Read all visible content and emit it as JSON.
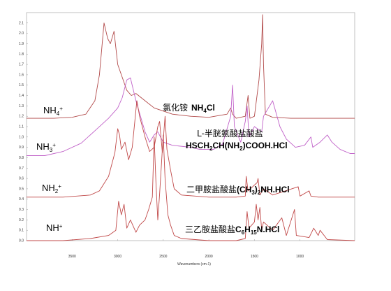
{
  "chart_data": {
    "type": "line",
    "xlabel": "Wavenumbers (cm-1)",
    "xlim": [
      4000,
      400
    ],
    "ylim": [
      0,
      2.2
    ],
    "x_ticks": [
      "3500",
      "3000",
      "2500",
      "2000",
      "1500",
      "1000"
    ],
    "y_ticks": [
      "2.1",
      "2.0",
      "1.9",
      "1.8",
      "1.7",
      "1.6",
      "1.5",
      "1.4",
      "1.3",
      "1.2",
      "1.1",
      "1.0",
      "0.9",
      "0.8",
      "0.7",
      "0.6",
      "0.5",
      "0.4",
      "0.3",
      "0.2",
      "0.1",
      "0.0"
    ],
    "groups": [
      {
        "base": "NH",
        "sub": "4",
        "sup": "+"
      },
      {
        "base": "NH",
        "sub": "3",
        "sup": "+"
      },
      {
        "base": "NH",
        "sub": "2",
        "sup": "+"
      },
      {
        "base": "NH",
        "sup": "+"
      }
    ],
    "compounds": [
      {
        "cn": "氯化铵",
        "f1": "NH",
        "f2": "4",
        "f3": "Cl"
      },
      {
        "cn": "L-半胱氨酸盐酸盐",
        "f1": "HSCH",
        "f2": "2",
        "f3": "CH(NH",
        "f4": "2",
        "f5": ")COOH.HCl"
      },
      {
        "cn": "二甲胺盐酸盐",
        "f1": "(CH",
        "f2": "3",
        "f3": ")",
        "f4": "2",
        "f5": "NH.HCl"
      },
      {
        "cn": "三乙胺盐酸盐",
        "f1": "C",
        "f2": "6",
        "f3": "H",
        "f4": "15",
        "f5": "N.HCl"
      }
    ],
    "series": [
      {
        "color": "#b24a4a",
        "points": [
          [
            4000,
            1.18
          ],
          [
            3700,
            1.18
          ],
          [
            3500,
            1.19
          ],
          [
            3350,
            1.22
          ],
          [
            3250,
            1.35
          ],
          [
            3200,
            1.6
          ],
          [
            3150,
            2.1
          ],
          [
            3110,
            1.95
          ],
          [
            3080,
            1.9
          ],
          [
            3040,
            2.02
          ],
          [
            3000,
            1.7
          ],
          [
            2900,
            1.45
          ],
          [
            2850,
            1.4
          ],
          [
            2800,
            1.42
          ],
          [
            2700,
            1.35
          ],
          [
            2600,
            1.28
          ],
          [
            2400,
            1.22
          ],
          [
            2200,
            1.2
          ],
          [
            2000,
            1.19
          ],
          [
            1800,
            1.22
          ],
          [
            1760,
            1.28
          ],
          [
            1740,
            1.22
          ],
          [
            1700,
            1.18
          ],
          [
            1600,
            1.2
          ],
          [
            1570,
            1.4
          ],
          [
            1550,
            1.18
          ],
          [
            1500,
            1.2
          ],
          [
            1450,
            1.55
          ],
          [
            1420,
            1.9
          ],
          [
            1410,
            2.18
          ],
          [
            1400,
            1.7
          ],
          [
            1380,
            1.22
          ],
          [
            1300,
            1.19
          ],
          [
            1100,
            1.18
          ],
          [
            800,
            1.18
          ],
          [
            400,
            1.18
          ]
        ]
      },
      {
        "color": "#c060c8",
        "points": [
          [
            4000,
            0.82
          ],
          [
            3800,
            0.82
          ],
          [
            3600,
            0.86
          ],
          [
            3400,
            0.94
          ],
          [
            3250,
            1.06
          ],
          [
            3100,
            1.18
          ],
          [
            3000,
            1.28
          ],
          [
            2950,
            1.38
          ],
          [
            2900,
            1.55
          ],
          [
            2860,
            1.57
          ],
          [
            2800,
            1.35
          ],
          [
            2700,
            1.05
          ],
          [
            2650,
            0.95
          ],
          [
            2600,
            1.02
          ],
          [
            2560,
            1.05
          ],
          [
            2500,
            0.95
          ],
          [
            2400,
            0.92
          ],
          [
            2200,
            0.9
          ],
          [
            2100,
            0.88
          ],
          [
            1950,
            0.88
          ],
          [
            1850,
            0.93
          ],
          [
            1760,
            1.2
          ],
          [
            1740,
            1.5
          ],
          [
            1720,
            1.1
          ],
          [
            1650,
            0.95
          ],
          [
            1600,
            1.15
          ],
          [
            1580,
            1.3
          ],
          [
            1560,
            1.0
          ],
          [
            1500,
            1.1
          ],
          [
            1420,
            1.05
          ],
          [
            1400,
            1.2
          ],
          [
            1300,
            1.35
          ],
          [
            1220,
            1.1
          ],
          [
            1150,
            0.98
          ],
          [
            1050,
            0.9
          ],
          [
            950,
            0.92
          ],
          [
            880,
            1.0
          ],
          [
            860,
            0.9
          ],
          [
            780,
            0.95
          ],
          [
            700,
            1.02
          ],
          [
            650,
            0.95
          ],
          [
            560,
            0.88
          ],
          [
            450,
            0.84
          ],
          [
            400,
            0.84
          ]
        ]
      },
      {
        "color": "#c04848",
        "points": [
          [
            4000,
            0.42
          ],
          [
            3600,
            0.42
          ],
          [
            3300,
            0.44
          ],
          [
            3200,
            0.48
          ],
          [
            3100,
            0.62
          ],
          [
            3030,
            0.85
          ],
          [
            3000,
            1.08
          ],
          [
            2980,
            1.02
          ],
          [
            2960,
            0.88
          ],
          [
            2920,
            0.95
          ],
          [
            2880,
            0.78
          ],
          [
            2840,
            0.9
          ],
          [
            2790,
            1.35
          ],
          [
            2760,
            1.2
          ],
          [
            2700,
            1.0
          ],
          [
            2650,
            0.86
          ],
          [
            2600,
            0.9
          ],
          [
            2560,
            1.1
          ],
          [
            2540,
            1.15
          ],
          [
            2510,
            0.85
          ],
          [
            2480,
            1.2
          ],
          [
            2460,
            0.88
          ],
          [
            2420,
            0.68
          ],
          [
            2380,
            0.5
          ],
          [
            2300,
            0.44
          ],
          [
            2000,
            0.42
          ],
          [
            1700,
            0.42
          ],
          [
            1600,
            0.43
          ],
          [
            1590,
            0.62
          ],
          [
            1570,
            0.48
          ],
          [
            1470,
            0.56
          ],
          [
            1460,
            0.6
          ],
          [
            1440,
            0.44
          ],
          [
            1400,
            0.5
          ],
          [
            1300,
            0.44
          ],
          [
            1020,
            0.52
          ],
          [
            1000,
            0.43
          ],
          [
            900,
            0.48
          ],
          [
            880,
            0.43
          ],
          [
            800,
            0.42
          ],
          [
            400,
            0.42
          ]
        ]
      },
      {
        "color": "#c04848",
        "points": [
          [
            4000,
            0.0
          ],
          [
            3600,
            0.0
          ],
          [
            3300,
            0.02
          ],
          [
            3100,
            0.05
          ],
          [
            3020,
            0.1
          ],
          [
            2990,
            0.38
          ],
          [
            2960,
            0.25
          ],
          [
            2930,
            0.35
          ],
          [
            2900,
            0.12
          ],
          [
            2860,
            0.2
          ],
          [
            2800,
            0.08
          ],
          [
            2760,
            0.15
          ],
          [
            2700,
            0.2
          ],
          [
            2660,
            0.3
          ],
          [
            2620,
            0.42
          ],
          [
            2600,
            1.0
          ],
          [
            2580,
            0.55
          ],
          [
            2560,
            0.2
          ],
          [
            2540,
            0.45
          ],
          [
            2500,
            1.02
          ],
          [
            2480,
            0.6
          ],
          [
            2450,
            0.25
          ],
          [
            2420,
            0.15
          ],
          [
            2380,
            0.05
          ],
          [
            2300,
            0.02
          ],
          [
            2000,
            0.0
          ],
          [
            1700,
            0.0
          ],
          [
            1600,
            0.02
          ],
          [
            1580,
            0.28
          ],
          [
            1560,
            0.12
          ],
          [
            1500,
            0.18
          ],
          [
            1480,
            0.35
          ],
          [
            1460,
            0.2
          ],
          [
            1440,
            0.32
          ],
          [
            1420,
            0.1
          ],
          [
            1400,
            0.18
          ],
          [
            1300,
            0.1
          ],
          [
            1200,
            0.22
          ],
          [
            1150,
            0.05
          ],
          [
            1060,
            0.3
          ],
          [
            1040,
            0.05
          ],
          [
            900,
            0.03
          ],
          [
            850,
            0.12
          ],
          [
            800,
            0.05
          ],
          [
            780,
            0.1
          ],
          [
            700,
            0.01
          ],
          [
            400,
            0.0
          ]
        ]
      }
    ],
    "offsets": [
      0,
      0,
      0,
      0
    ]
  }
}
